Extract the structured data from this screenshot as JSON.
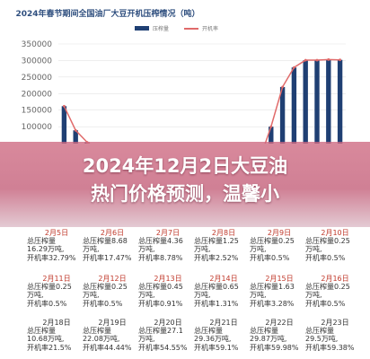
{
  "chart_data": {
    "type": "bar",
    "title": "2024年春节期间全国油厂大豆开机压榨情况（吨）",
    "series": [
      {
        "name": "压榨量",
        "values": [
          162000,
          89000,
          53000,
          29000,
          0,
          0,
          0,
          0,
          0,
          0,
          0,
          0,
          0,
          0,
          0,
          0,
          0,
          0,
          100000,
          220000,
          279000,
          301000,
          301000,
          303000,
          302000
        ]
      },
      {
        "name": "开机率",
        "values": [
          162000,
          89000,
          53000,
          29000,
          0,
          0,
          0,
          0,
          0,
          0,
          0,
          0,
          0,
          0,
          0,
          0,
          0,
          0,
          100000,
          220000,
          279000,
          301000,
          301000,
          303000,
          302000
        ]
      }
    ],
    "ylim": [
      0,
      350000
    ],
    "yticks": [
      "350000",
      "300000",
      "250000",
      "200000",
      "150000",
      "100000"
    ]
  },
  "headline": [
    "2024年12月2日大豆油",
    "热门价格预测，温馨小"
  ],
  "table": {
    "row1": [
      {
        "date": "2月5日",
        "l1": "总压榨量",
        "l2": "16.29万吨,",
        "l3": "开机率32.79%"
      },
      {
        "date": "2月6日",
        "l1": "总压榨量8.68",
        "l2": "万吨,",
        "l3": "开机率17.47%"
      },
      {
        "date": "2月7日",
        "l1": "总压榨量4.36",
        "l2": "万吨,",
        "l3": "开机率8.78%"
      },
      {
        "date": "2月8日",
        "l1": "总压榨量1.25",
        "l2": "万吨,",
        "l3": "开机率2.52%"
      },
      {
        "date": "2月9日",
        "l1": "总压榨量0.25",
        "l2": "万吨,",
        "l3": "开机率0.5%"
      },
      {
        "date": "2月10日",
        "l1": "总压榨量0.25",
        "l2": "万吨,",
        "l3": "开机率0.5%"
      }
    ],
    "row2": [
      {
        "date": "2月11日",
        "l1": "总压榨量0.25",
        "l2": "万吨,",
        "l3": "开机率0.5%"
      },
      {
        "date": "2月12日",
        "l1": "总压榨量0.25",
        "l2": "万吨,",
        "l3": "开机率0.5%"
      },
      {
        "date": "2月13日",
        "l1": "总压榨量0.45",
        "l2": "万吨,",
        "l3": "开机率0.91%"
      },
      {
        "date": "2月14日",
        "l1": "总压榨量0.65",
        "l2": "万吨,",
        "l3": "开机率1.31%"
      },
      {
        "date": "2月15日",
        "l1": "总压榨量1.63",
        "l2": "万吨,",
        "l3": "开机率3.28%"
      },
      {
        "date": "2月16日",
        "l1": "总压榨量0.25",
        "l2": "万吨,",
        "l3": "开机率0.5%"
      }
    ],
    "row3": [
      {
        "date": "2月18日",
        "l1": "总压榨量",
        "l2": "10.68万吨,",
        "l3": "开机率21.5%"
      },
      {
        "date": "2月19日",
        "l1": "总压榨量",
        "l2": "22.08万吨,",
        "l3": "开机率44.44%"
      },
      {
        "date": "2月20日",
        "l1": "总压榨量27.1",
        "l2": "万吨,",
        "l3": "开机率54.55%"
      },
      {
        "date": "2月21日",
        "l1": "总压榨量",
        "l2": "29.36万吨,",
        "l3": "开机率59.1%"
      },
      {
        "date": "2月22日",
        "l1": "总压榨量",
        "l2": "29.87万吨,",
        "l3": "开机率59.98%"
      },
      {
        "date": "2月23日",
        "l1": "总压榨量",
        "l2": "29.5万吨,",
        "l3": "开机率59.38%"
      }
    ]
  }
}
